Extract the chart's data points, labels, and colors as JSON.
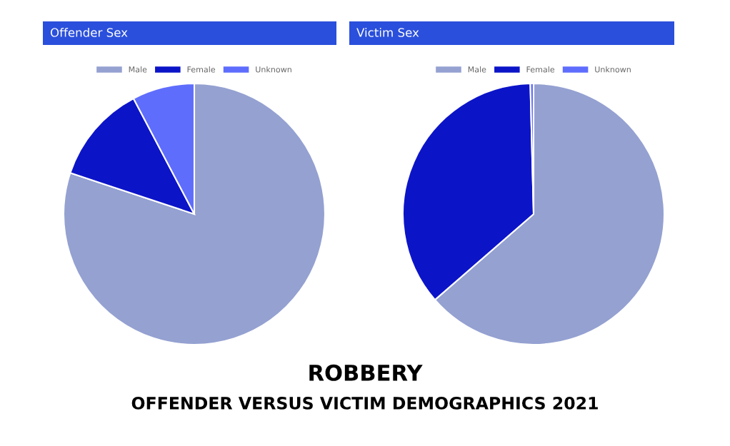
{
  "chart_data": [
    {
      "type": "pie",
      "title": "Offender Sex",
      "categories": [
        "Male",
        "Female",
        "Unknown"
      ],
      "values": [
        80.1,
        12.2,
        7.7
      ],
      "colors": [
        "#94a1d1",
        "#0c14c8",
        "#5f6dfd"
      ],
      "legend": "top",
      "annotations": [
        "ROBBERY",
        "OFFENDER VERSUS VICTIM DEMOGRAPHICS 2021"
      ]
    },
    {
      "type": "pie",
      "title": "Victim Sex",
      "categories": [
        "Male",
        "Female",
        "Unknown"
      ],
      "values": [
        63.6,
        36.0,
        0.4
      ],
      "colors": [
        "#94a1d1",
        "#0c14c8",
        "#5f6dfd"
      ],
      "legend": "top"
    }
  ]
}
